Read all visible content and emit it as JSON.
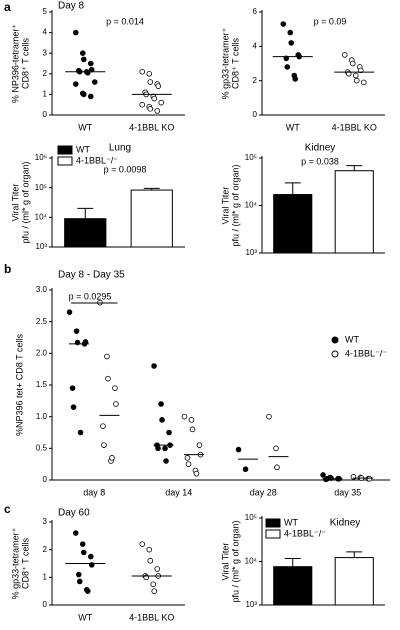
{
  "panel_labels": [
    "a",
    "b",
    "c"
  ],
  "chart_data": [
    {
      "type": "dotplot",
      "title": "Day 8",
      "ylabel": [
        "% NP396-tetramer⁺",
        "CD8⁺ T cells"
      ],
      "pvalue": "p = 0.014",
      "categories": [
        "WT",
        "4-1BBL KO"
      ],
      "groups": [
        {
          "fill": "#000",
          "values": [
            4.0,
            3.0,
            2.7,
            2.5,
            2.2,
            2.15,
            2.1,
            2.1,
            2.05,
            1.6,
            1.5,
            1.05,
            1.0,
            0.9
          ],
          "median": 2.1
        },
        {
          "fill": "#fff",
          "values": [
            2.1,
            2.0,
            1.6,
            1.5,
            1.4,
            1.1,
            1.0,
            0.9,
            0.8,
            0.6,
            0.5,
            0.4,
            0.3,
            0.2
          ],
          "median": 1.0
        }
      ],
      "ylim": [
        0,
        5
      ],
      "yticks": [
        0,
        1,
        2,
        3,
        4,
        5
      ]
    },
    {
      "type": "dotplot",
      "ylabel": [
        "% gp33-tetramer⁺",
        "CD8⁺ T cells"
      ],
      "pvalue": "p = 0.09",
      "categories": [
        "WT",
        "4-1BBL KO"
      ],
      "groups": [
        {
          "fill": "#000",
          "values": [
            5.3,
            4.8,
            4.2,
            3.5,
            3.4,
            3.3,
            2.8,
            2.3,
            2.1
          ],
          "median": 3.4
        },
        {
          "fill": "#fff",
          "values": [
            3.5,
            3.2,
            3.0,
            2.8,
            2.6,
            2.5,
            2.4,
            2.3,
            2.0,
            1.9
          ],
          "median": 2.5
        }
      ],
      "ylim": [
        0,
        6
      ],
      "yticks": [
        0,
        2,
        4,
        6
      ]
    },
    {
      "type": "bar",
      "title": "Lung",
      "ylabel": [
        "Viral Titer",
        "pfu / (ml* g of organ)"
      ],
      "pvalue": "p = 0.0098",
      "log": true,
      "legend": [
        "WT",
        "4-1BBL⁻/⁻"
      ],
      "colors": [
        "#000",
        "#fff"
      ],
      "values": [
        9000,
        83000
      ],
      "errors": [
        11000,
        12000
      ],
      "ylim": [
        1000,
        1000000
      ],
      "yticks": [
        {
          "value": 1000,
          "label": "10³"
        },
        {
          "value": 10000,
          "label": "10⁴"
        },
        {
          "value": 100000,
          "label": "10⁵"
        },
        {
          "value": 1000000,
          "label": "10⁶"
        }
      ]
    },
    {
      "type": "bar",
      "title": "Kidney",
      "ylabel": [
        "Viral Titer",
        "pfu / (ml* g of organ)"
      ],
      "pvalue": "p = 0.038",
      "log": true,
      "colors": [
        "#000",
        "#fff"
      ],
      "values": [
        17000,
        54000
      ],
      "errors": [
        13000,
        15000
      ],
      "ylim": [
        1000,
        100000
      ],
      "yticks": [
        {
          "value": 1000,
          "label": "10³"
        },
        {
          "value": 10000,
          "label": "10⁴"
        },
        {
          "value": 100000,
          "label": "10⁵"
        }
      ]
    },
    {
      "type": "dotplot",
      "title": "Day 8 - Day 35",
      "ylabel": [
        "%NP396 tet+ CD8 T cells"
      ],
      "pvalue": "p = 0.0295",
      "categories": [
        "day 8",
        "day 14",
        "day 28",
        "day 35"
      ],
      "series": [
        {
          "name": "WT",
          "fill": "#000",
          "values": [
            [
              2.65,
              2.35,
              2.17,
              2.15,
              2.18,
              1.45,
              1.15,
              0.75
            ],
            [
              1.8,
              1.2,
              0.95,
              0.75,
              0.55,
              0.55,
              0.5,
              0.5,
              0.3
            ],
            [
              0.48,
              0.17
            ],
            [
              0.08,
              0.04,
              0.03,
              0.02,
              0.02,
              0.01,
              0.02
            ]
          ],
          "medians": [
            2.15,
            0.55,
            0.33,
            0.02
          ]
        },
        {
          "name": "4-1BBL⁻/⁻",
          "fill": "#fff",
          "values": [
            [
              2.8,
              1.95,
              1.6,
              1.45,
              1.2,
              0.85,
              0.55,
              0.3,
              0.35
            ],
            [
              1.0,
              0.95,
              0.8,
              0.55,
              0.4,
              0.35,
              0.25,
              0.15,
              0.1
            ],
            [
              1.0,
              0.5,
              0.2
            ],
            [
              0.05,
              0.04,
              0.03,
              0.02,
              0.02
            ]
          ],
          "medians": [
            1.02,
            0.4,
            0.37,
            0.03
          ]
        }
      ],
      "ylim": [
        0,
        3
      ],
      "yticks": [
        0,
        0.5,
        {
          "value": 1,
          "label": "1.0"
        },
        1.5,
        {
          "value": 2,
          "label": "2.0"
        },
        2.5,
        {
          "value": 3,
          "label": "3.0"
        }
      ]
    },
    {
      "type": "dotplot",
      "title": "Day 60",
      "ylabel": [
        "% gp33-tetramer⁺",
        "CD8⁺ T cells"
      ],
      "categories": [
        "WT",
        "4-1BBL KO"
      ],
      "groups": [
        {
          "fill": "#000",
          "values": [
            2.6,
            2.2,
            1.9,
            1.75,
            1.45,
            1.1,
            0.85,
            0.55,
            0.5
          ],
          "median": 1.5
        },
        {
          "fill": "#fff",
          "values": [
            2.2,
            2.0,
            1.6,
            1.3,
            1.05,
            1.05,
            1.0,
            0.75,
            0.5
          ],
          "median": 1.05
        }
      ],
      "ylim": [
        0,
        3
      ],
      "yticks": [
        0,
        1,
        2,
        3
      ]
    },
    {
      "type": "bar",
      "title": "Kidney",
      "ylabel": [
        "Viral Titer",
        "pfu / (ml* g of organ)"
      ],
      "log": true,
      "legend": [
        "WT",
        "4-1BBL⁻/⁻"
      ],
      "colors": [
        "#000",
        "#fff"
      ],
      "values": [
        7600,
        12300
      ],
      "errors": [
        4100,
        4300
      ],
      "ylim": [
        1000,
        100000
      ],
      "yticks": [
        {
          "value": 1000,
          "label": "10³"
        },
        {
          "value": 10000,
          "label": "10⁴"
        },
        {
          "value": 100000,
          "label": "10⁵"
        }
      ]
    }
  ]
}
